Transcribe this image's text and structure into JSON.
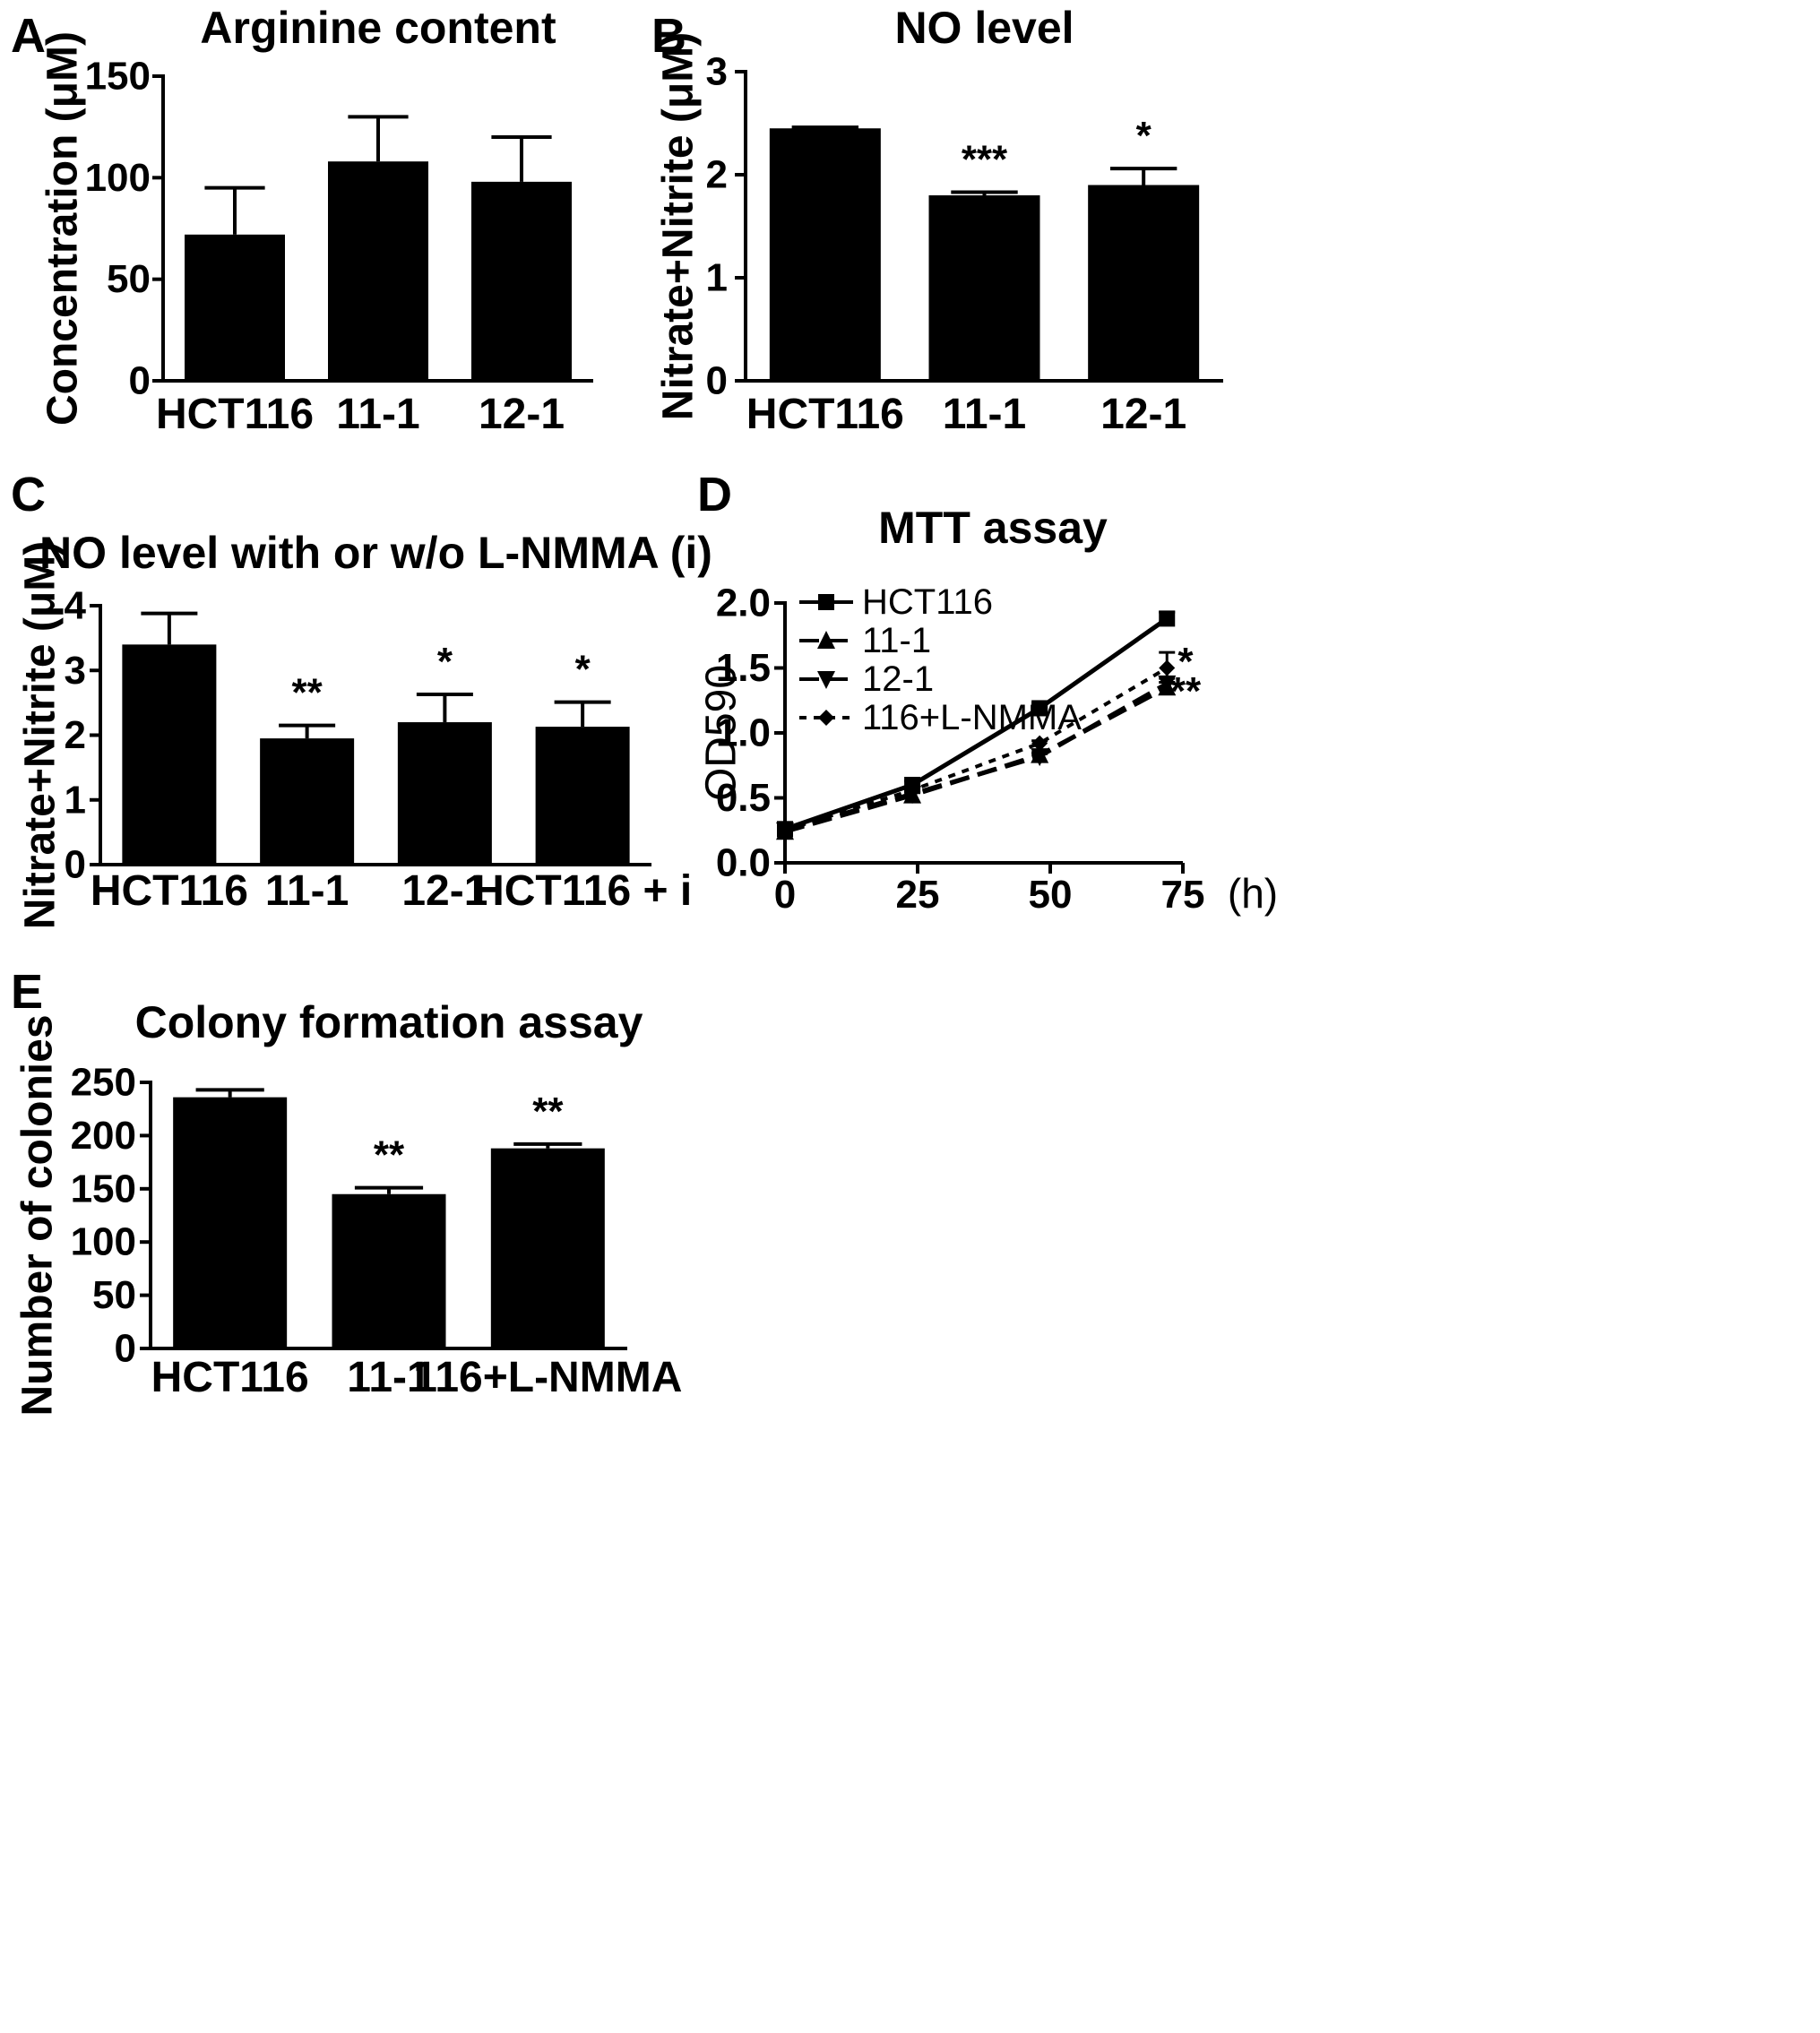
{
  "chart_data": [
    {
      "panel": "A",
      "type": "bar",
      "title": "Arginine content",
      "ylabel": "Concentration (μM)",
      "xlabel": "",
      "categories": [
        "HCT116",
        "11-1",
        "12-1"
      ],
      "values": [
        72,
        108,
        98
      ],
      "errors": [
        23,
        22,
        22
      ],
      "significance": [
        "",
        "",
        ""
      ],
      "ylim": [
        0,
        150
      ],
      "yticks": [
        0,
        50,
        100,
        150
      ],
      "grid": false
    },
    {
      "panel": "B",
      "type": "bar",
      "title": "NO level",
      "ylabel": "Nitrate+Nitrite (μM)",
      "xlabel": "",
      "categories": [
        "HCT116",
        "11-1",
        "12-1"
      ],
      "values": [
        2.45,
        1.8,
        1.9
      ],
      "errors": [
        0.01,
        0.03,
        0.16
      ],
      "significance": [
        "",
        "***",
        "*"
      ],
      "ylim": [
        0,
        3
      ],
      "yticks": [
        0,
        1,
        2,
        3
      ],
      "grid": false
    },
    {
      "panel": "C",
      "type": "bar",
      "title": "NO level with or w/o L-NMMA (i)",
      "ylabel": "Nitrate+Nitrite (μM)",
      "xlabel": "",
      "categories": [
        "HCT116",
        "11-1",
        "12-1",
        "HCT116 + i"
      ],
      "values": [
        3.4,
        1.95,
        2.2,
        2.13
      ],
      "errors": [
        0.48,
        0.2,
        0.43,
        0.38
      ],
      "significance": [
        "",
        "**",
        "*",
        "*"
      ],
      "ylim": [
        0,
        4
      ],
      "yticks": [
        0,
        1,
        2,
        3,
        4
      ],
      "grid": false
    },
    {
      "panel": "D",
      "type": "line",
      "title": "MTT assay",
      "ylabel": "OD590",
      "xlabel": "",
      "x_unit": "(h)",
      "x": [
        0,
        24,
        48,
        72
      ],
      "xlim": [
        0,
        75
      ],
      "xticks": [
        0,
        25,
        50,
        75
      ],
      "ylim": [
        0,
        2
      ],
      "yticks": [
        "0.0",
        "0.5",
        "1.0",
        "1.5",
        "2.0"
      ],
      "legend_position": "top-left",
      "grid": false,
      "series": [
        {
          "name": "HCT116",
          "values": [
            0.26,
            0.6,
            1.19,
            1.88
          ],
          "errors": [
            0.02,
            0.03,
            0.04,
            0.05
          ],
          "marker": "square",
          "dash": "solid"
        },
        {
          "name": "11-1",
          "values": [
            0.24,
            0.52,
            0.83,
            1.35
          ],
          "errors": [
            0.01,
            0.02,
            0.02,
            0.04
          ],
          "marker": "triangle-up",
          "dash": "long"
        },
        {
          "name": "12-1",
          "values": [
            0.25,
            0.53,
            0.82,
            1.38
          ],
          "errors": [
            0.01,
            0.02,
            0.02,
            0.04
          ],
          "marker": "triangle-down",
          "dash": "long"
        },
        {
          "name": "116+L-NMMA",
          "values": [
            0.25,
            0.56,
            0.92,
            1.5
          ],
          "errors": [
            0.01,
            0.02,
            0.02,
            0.12
          ],
          "marker": "diamond",
          "dash": "short"
        }
      ],
      "annotations": [
        {
          "text": "*",
          "x": 75.5,
          "y": 1.55
        },
        {
          "text": "**",
          "x": 75.5,
          "y": 1.32
        }
      ]
    },
    {
      "panel": "E",
      "type": "bar",
      "title": "Colony formation assay",
      "ylabel": "Number of colonies",
      "xlabel": "",
      "categories": [
        "HCT116",
        "11-1",
        "116+L-NMMA"
      ],
      "values": [
        236,
        145,
        188
      ],
      "errors": [
        7,
        6,
        4
      ],
      "significance": [
        "",
        "**",
        "**"
      ],
      "ylim": [
        0,
        250
      ],
      "yticks": [
        0,
        50,
        100,
        150,
        200,
        250
      ],
      "grid": false
    }
  ]
}
